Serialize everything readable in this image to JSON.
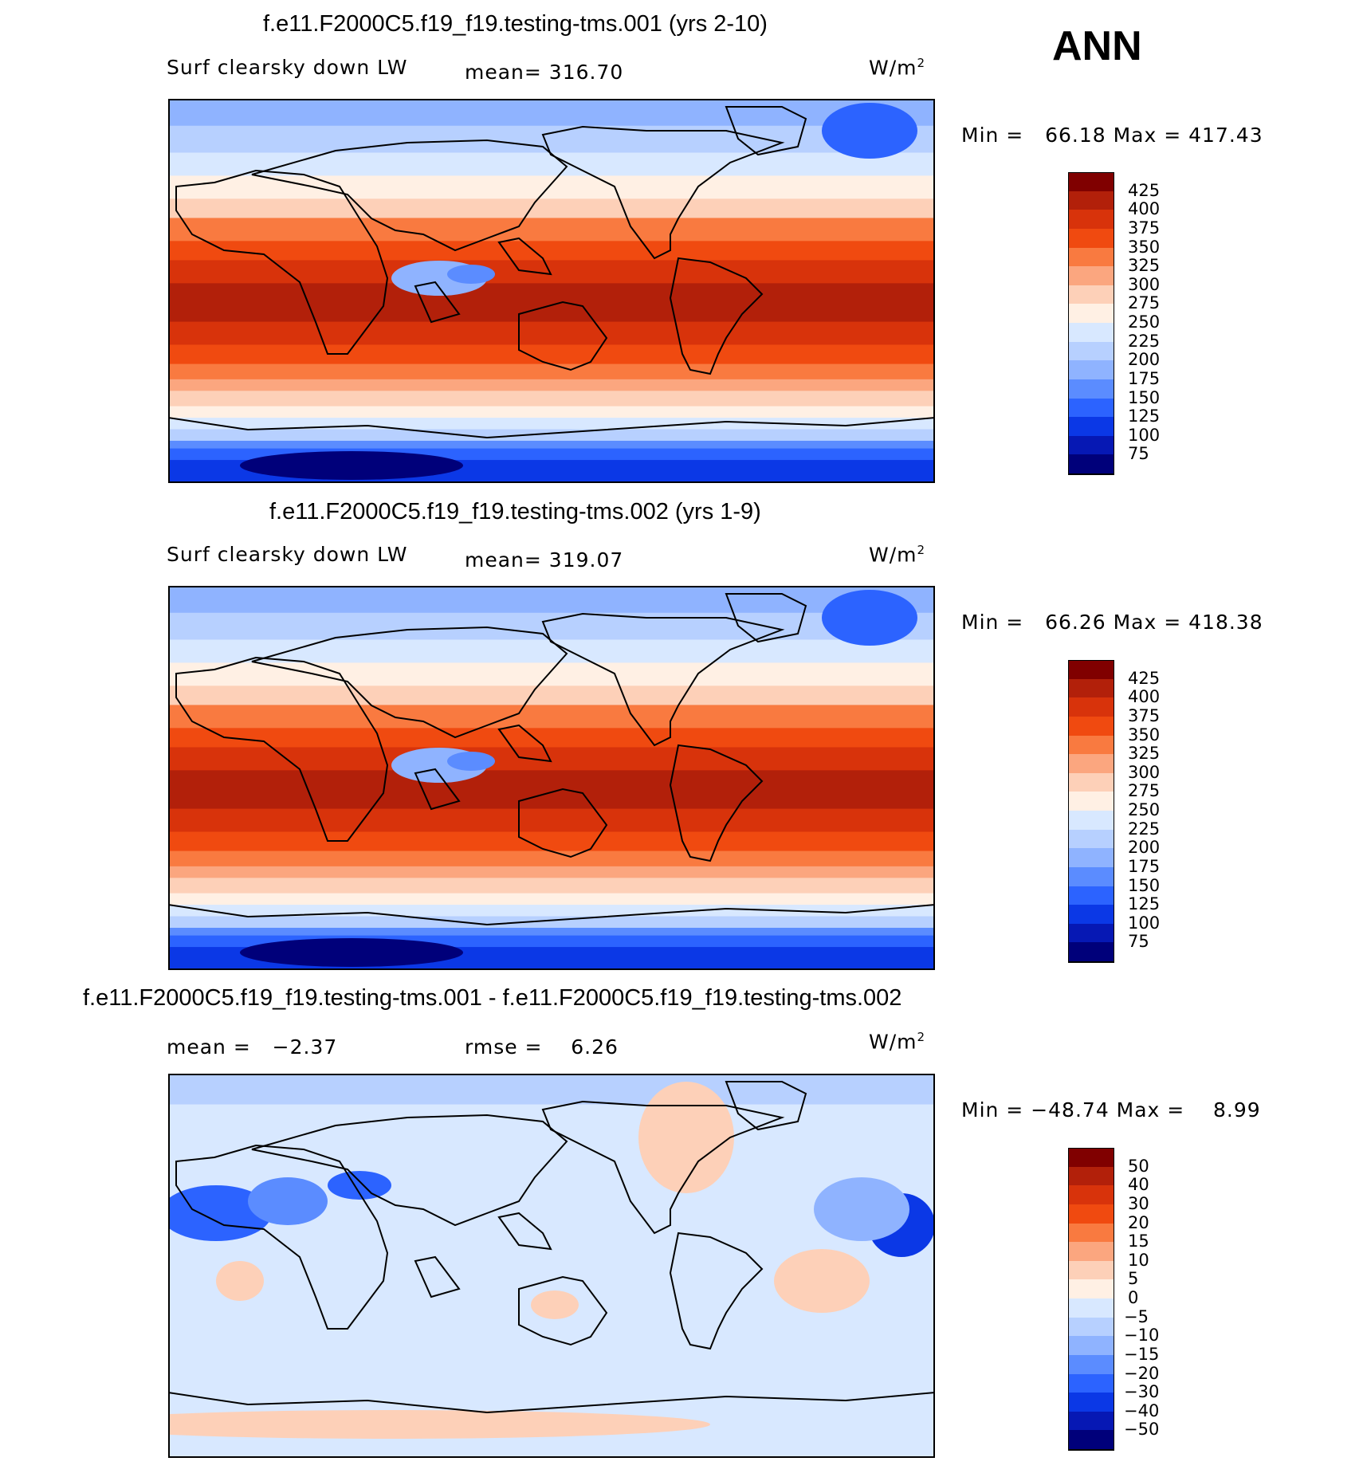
{
  "season": "ANN",
  "panels": [
    {
      "title": "f.e11.F2000C5.f19_f19.testing-tms.001 (yrs 2-10)",
      "left_label": "Surf clearsky down LW",
      "center_label": "mean= 316.70",
      "units": "W/m",
      "units_sup": "2",
      "minmax": "Min =   66.18 Max = 417.43",
      "colorbar": {
        "labels": [
          "425",
          "400",
          "375",
          "350",
          "325",
          "300",
          "275",
          "250",
          "225",
          "200",
          "175",
          "150",
          "125",
          "100",
          "75"
        ],
        "colors": [
          "#800000",
          "#b2200a",
          "#d8330b",
          "#f04a10",
          "#f97a40",
          "#fba67f",
          "#fdd0b8",
          "#fff0e4",
          "#d8e8ff",
          "#b7d0ff",
          "#8fb3ff",
          "#5b8cff",
          "#2c63ff",
          "#0b38e6",
          "#0618b4",
          "#00007a"
        ]
      }
    },
    {
      "title": "f.e11.F2000C5.f19_f19.testing-tms.002 (yrs 1-9)",
      "left_label": "Surf clearsky down LW",
      "center_label": "mean= 319.07",
      "units": "W/m",
      "units_sup": "2",
      "minmax": "Min =   66.26 Max = 418.38",
      "colorbar": {
        "labels": [
          "425",
          "400",
          "375",
          "350",
          "325",
          "300",
          "275",
          "250",
          "225",
          "200",
          "175",
          "150",
          "125",
          "100",
          "75"
        ],
        "colors": [
          "#800000",
          "#b2200a",
          "#d8330b",
          "#f04a10",
          "#f97a40",
          "#fba67f",
          "#fdd0b8",
          "#fff0e4",
          "#d8e8ff",
          "#b7d0ff",
          "#8fb3ff",
          "#5b8cff",
          "#2c63ff",
          "#0b38e6",
          "#0618b4",
          "#00007a"
        ]
      }
    },
    {
      "title": "f.e11.F2000C5.f19_f19.testing-tms.001 - f.e11.F2000C5.f19_f19.testing-tms.002",
      "left_label": "mean =   −2.37",
      "center_label": "rmse =    6.26",
      "units": "W/m",
      "units_sup": "2",
      "minmax": "Min = −48.74 Max =    8.99",
      "colorbar": {
        "labels": [
          "50",
          "40",
          "30",
          "20",
          "15",
          "10",
          "5",
          "0",
          "−5",
          "−10",
          "−15",
          "−20",
          "−30",
          "−40",
          "−50"
        ],
        "colors": [
          "#800000",
          "#b2200a",
          "#d8330b",
          "#f04a10",
          "#f97a40",
          "#fba67f",
          "#fdd0b8",
          "#fff0e4",
          "#d8e8ff",
          "#b7d0ff",
          "#8fb3ff",
          "#5b8cff",
          "#2c63ff",
          "#0b38e6",
          "#0618b4",
          "#00007a"
        ]
      }
    }
  ]
}
